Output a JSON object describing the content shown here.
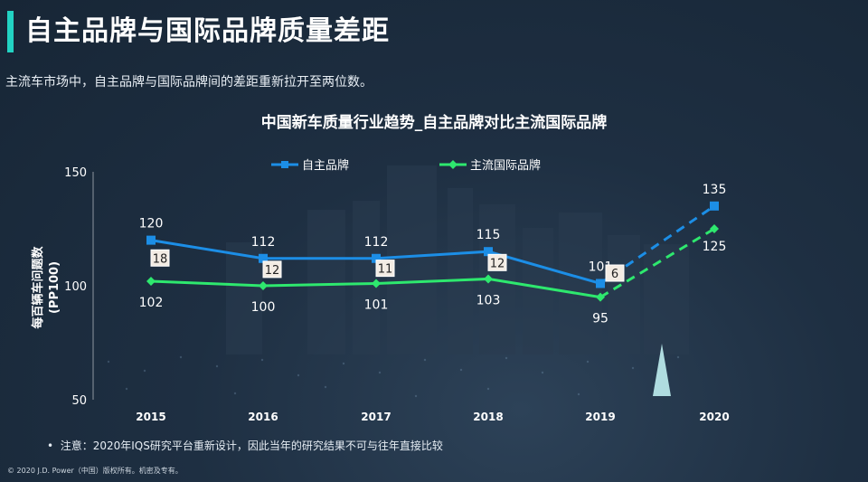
{
  "page": {
    "title": "自主品牌与国际品牌质量差距",
    "subtitle": "主流车市场中，自主品牌与国际品牌间的差距重新拉开至两位数。",
    "footnote": "注意：2020年IQS研究平台重新设计，因此当年的研究结果不可与往年直接比较",
    "copyright": "© 2020 J.D. Power（中国）版权所有。机密及专有。"
  },
  "chart_data": {
    "type": "line",
    "title": "中国新车质量行业趋势_自主品牌对比主流国际品牌",
    "ylabel_line1": "每百辆车问题数",
    "ylabel_line2": "(PP100)",
    "ylim": [
      50,
      150
    ],
    "yticks": [
      50,
      100,
      150
    ],
    "categories": [
      "2015",
      "2016",
      "2017",
      "2018",
      "2019",
      "2020"
    ],
    "series": [
      {
        "name": "自主品牌",
        "color": "#1c8ee6",
        "values": [
          120,
          112,
          112,
          115,
          101,
          135
        ],
        "labels": [
          "120",
          "112",
          "112",
          "115",
          "101",
          "135"
        ]
      },
      {
        "name": "主流国际品牌",
        "color": "#2ee86e",
        "values": [
          102,
          100,
          101,
          103,
          95,
          125
        ],
        "labels": [
          "102",
          "100",
          "101",
          "103",
          "95",
          "125"
        ]
      }
    ],
    "gaps": [
      "18",
      "12",
      "11",
      "12",
      "6"
    ],
    "dashed_from_index": 4,
    "legend_position": "top",
    "grid": false
  }
}
